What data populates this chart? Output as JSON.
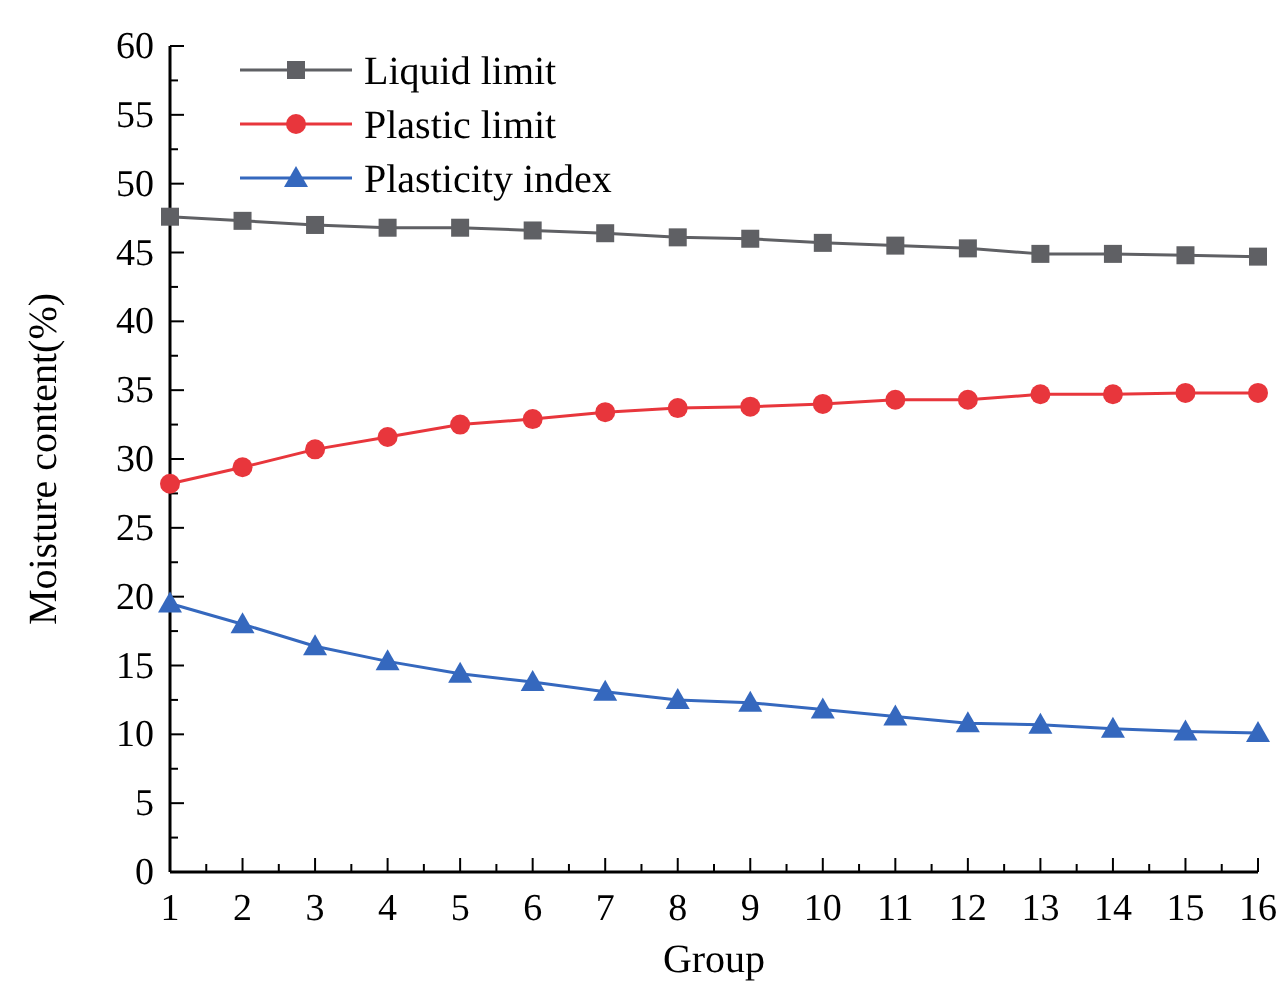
{
  "chart_data": {
    "type": "line",
    "xlabel": "Group",
    "ylabel": "Moisture content(%)",
    "x": [
      1,
      2,
      3,
      4,
      5,
      6,
      7,
      8,
      9,
      10,
      11,
      12,
      13,
      14,
      15,
      16
    ],
    "xlim": [
      1,
      16
    ],
    "xticks": [
      1,
      2,
      3,
      4,
      5,
      6,
      7,
      8,
      9,
      10,
      11,
      12,
      13,
      14,
      15,
      16
    ],
    "ylim": [
      0,
      60
    ],
    "yticks": [
      0,
      5,
      10,
      15,
      20,
      25,
      30,
      35,
      40,
      45,
      50,
      55,
      60
    ],
    "grid": false,
    "legend": "top left",
    "line_style": "solid",
    "series": [
      {
        "name": "Liquid limit",
        "color": "#5f6064",
        "marker": "square",
        "values": [
          47.6,
          47.3,
          47.0,
          46.8,
          46.8,
          46.6,
          46.4,
          46.1,
          46.0,
          45.7,
          45.5,
          45.3,
          44.9,
          44.9,
          44.8,
          44.7
        ]
      },
      {
        "name": "Plastic limit",
        "color": "#e8363c",
        "marker": "circle",
        "values": [
          28.2,
          29.4,
          30.7,
          31.6,
          32.5,
          32.9,
          33.4,
          33.7,
          33.8,
          34.0,
          34.3,
          34.3,
          34.7,
          34.7,
          34.8,
          34.8
        ]
      },
      {
        "name": "Plasticity index",
        "color": "#3568be",
        "marker": "triangle",
        "values": [
          19.5,
          18.0,
          16.4,
          15.3,
          14.4,
          13.8,
          13.1,
          12.5,
          12.3,
          11.8,
          11.3,
          10.8,
          10.7,
          10.4,
          10.2,
          10.1
        ]
      }
    ]
  }
}
